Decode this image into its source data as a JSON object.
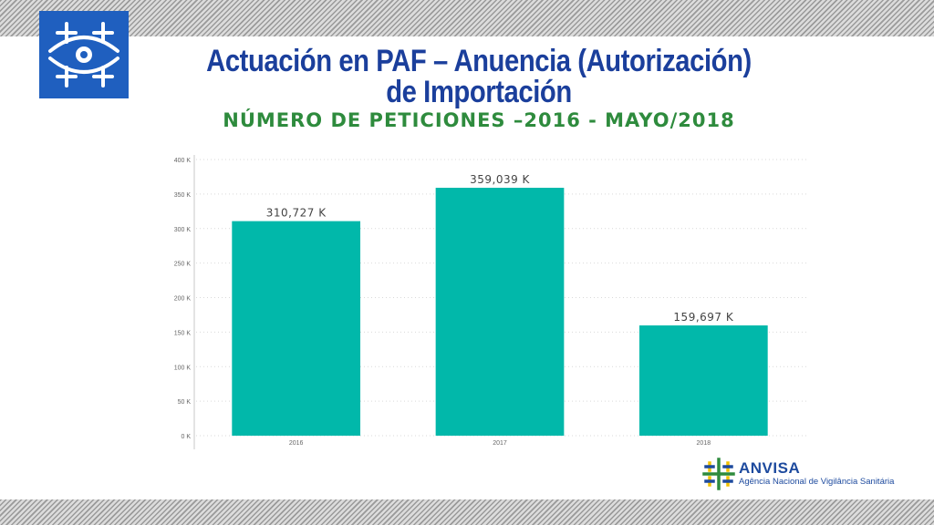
{
  "slide": {
    "title_line1": "Actuación en PAF – Anuencia (Autorización)",
    "title_line2": "de Importación",
    "subtitle": "NÚMERO DE PETICIONES –2016 - MAYO/2018"
  },
  "footer_logo": {
    "name": "ANVISA",
    "tagline": "Agência Nacional de Vigilância Sanitária"
  },
  "colors": {
    "title": "#1b3f9c",
    "subtitle": "#2e8b3d",
    "bar": "#01b8aa",
    "logo_blue": "#1f5fbf"
  },
  "chart_data": {
    "type": "bar",
    "categories": [
      "2016",
      "2017",
      "2018"
    ],
    "values": [
      310727,
      359039,
      159697
    ],
    "data_labels": [
      "310,727 K",
      "359,039 K",
      "159,697 K"
    ],
    "y_ticks": [
      "0 K",
      "50 K",
      "100 K",
      "150 K",
      "200 K",
      "250 K",
      "300 K",
      "350 K",
      "400 K"
    ],
    "ylim": [
      0,
      400000
    ],
    "grid": true,
    "title": "",
    "xlabel": "",
    "ylabel": ""
  }
}
